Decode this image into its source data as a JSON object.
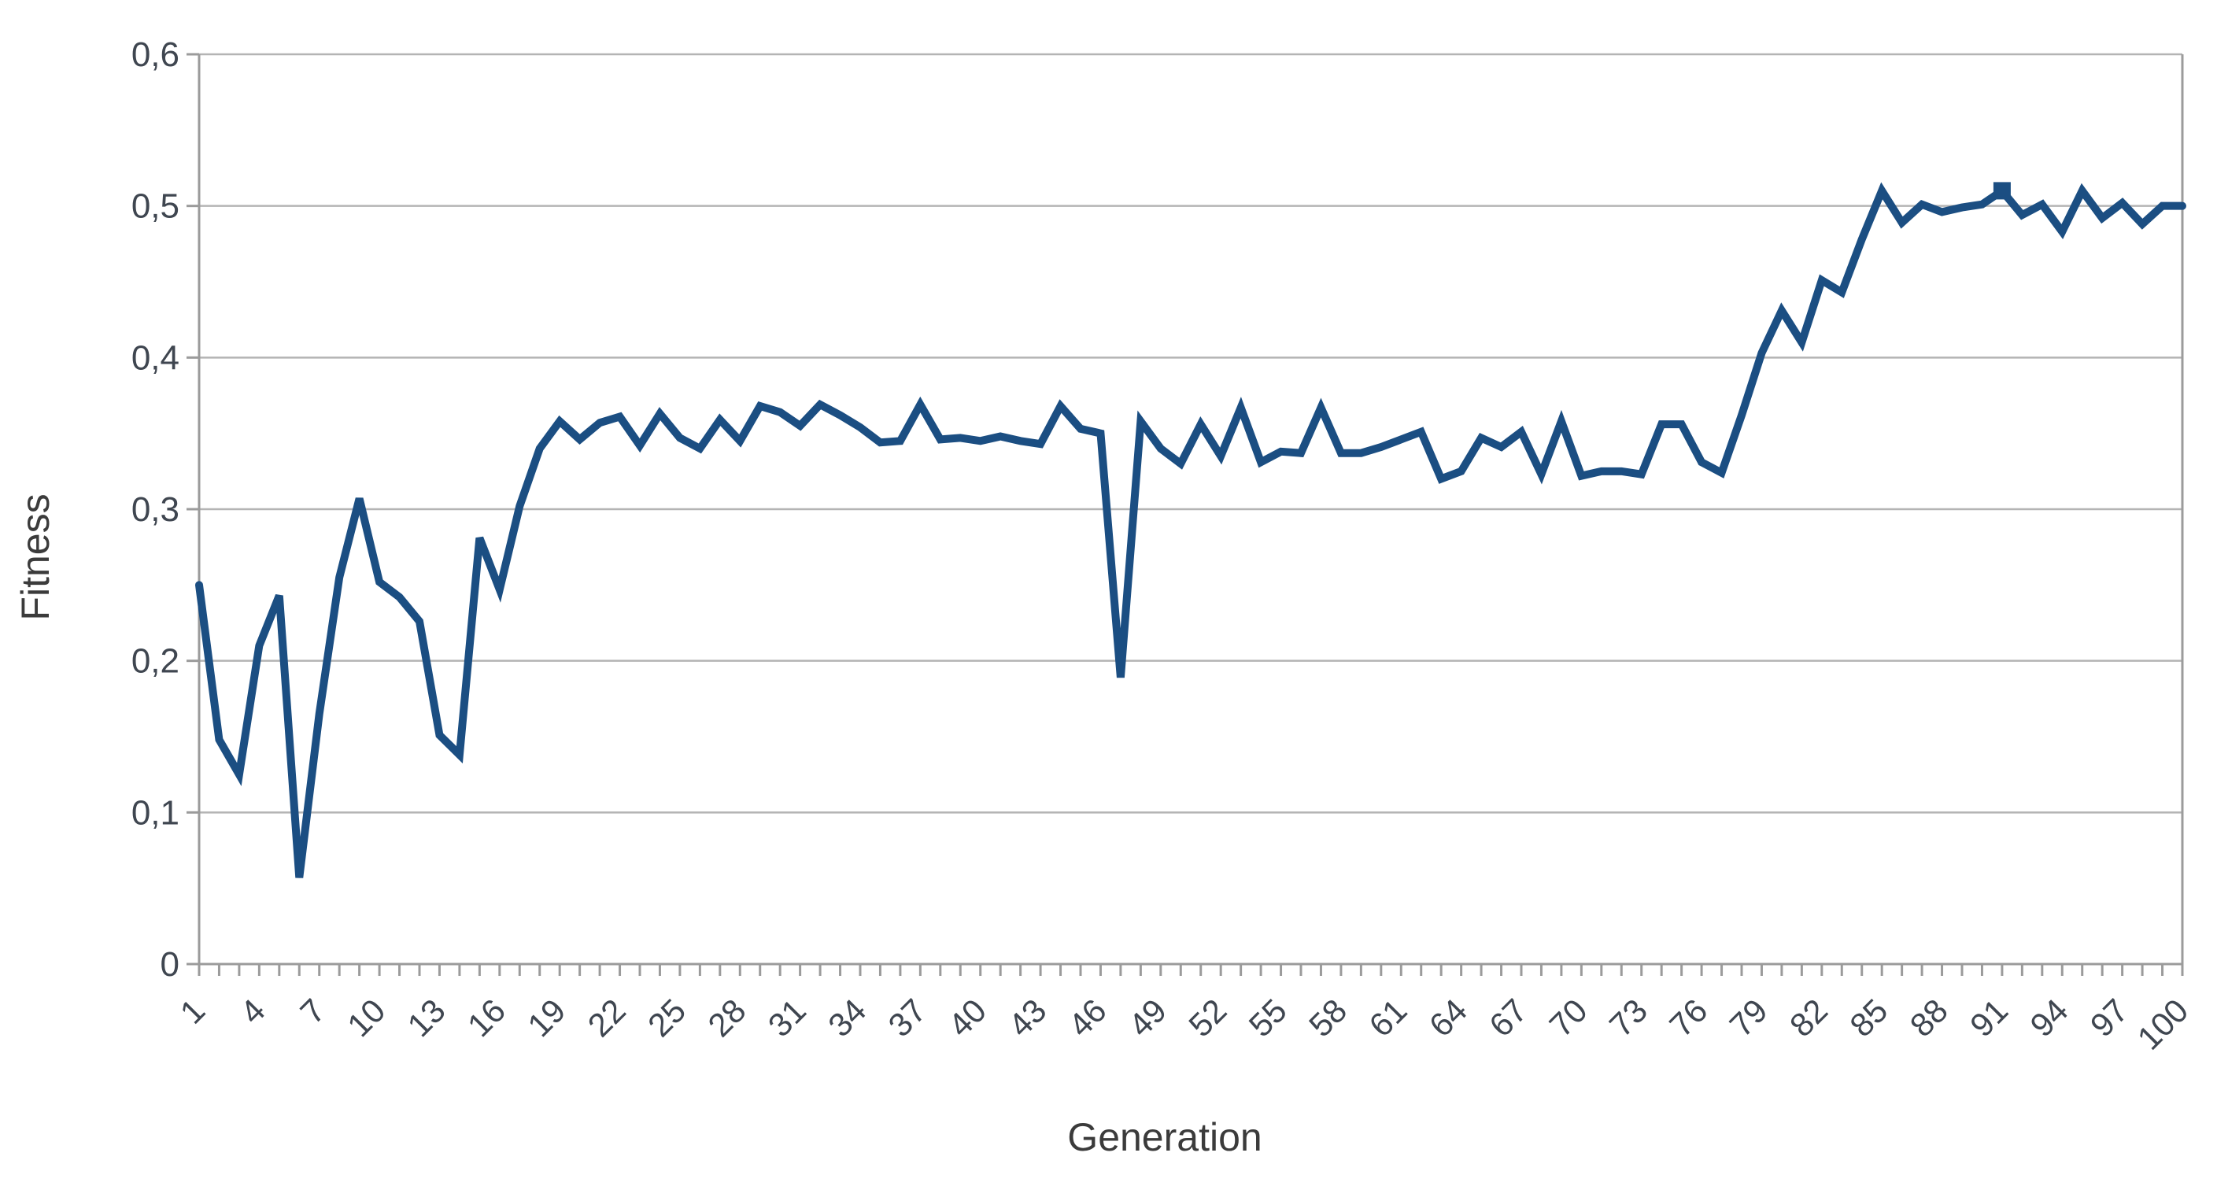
{
  "chart_data": {
    "type": "line",
    "title": "",
    "xlabel": "Generation",
    "ylabel": "Fitness",
    "x": [
      1,
      2,
      3,
      4,
      5,
      6,
      7,
      8,
      9,
      10,
      11,
      12,
      13,
      14,
      15,
      16,
      17,
      18,
      19,
      20,
      21,
      22,
      23,
      24,
      25,
      26,
      27,
      28,
      29,
      30,
      31,
      32,
      33,
      34,
      35,
      36,
      37,
      38,
      39,
      40,
      41,
      42,
      43,
      44,
      45,
      46,
      47,
      48,
      49,
      50,
      51,
      52,
      53,
      54,
      55,
      56,
      57,
      58,
      59,
      60,
      61,
      62,
      63,
      64,
      65,
      66,
      67,
      68,
      69,
      70,
      71,
      72,
      73,
      74,
      75,
      76,
      77,
      78,
      79,
      80,
      81,
      82,
      83,
      84,
      85,
      86,
      87,
      88,
      89,
      90,
      91,
      92,
      93,
      94,
      95,
      96,
      97,
      98,
      99,
      100
    ],
    "series": [
      {
        "name": "Fitness",
        "values": [
          0.25,
          0.148,
          0.125,
          0.21,
          0.243,
          0.057,
          0.165,
          0.255,
          0.307,
          0.252,
          0.242,
          0.226,
          0.151,
          0.138,
          0.281,
          0.247,
          0.302,
          0.34,
          0.358,
          0.346,
          0.357,
          0.361,
          0.342,
          0.363,
          0.347,
          0.34,
          0.359,
          0.345,
          0.368,
          0.364,
          0.355,
          0.369,
          0.362,
          0.354,
          0.344,
          0.345,
          0.369,
          0.346,
          0.347,
          0.345,
          0.348,
          0.345,
          0.343,
          0.368,
          0.353,
          0.35,
          0.189,
          0.358,
          0.34,
          0.33,
          0.356,
          0.335,
          0.367,
          0.331,
          0.338,
          0.337,
          0.367,
          0.337,
          0.337,
          0.341,
          0.346,
          0.351,
          0.32,
          0.325,
          0.347,
          0.341,
          0.351,
          0.323,
          0.358,
          0.322,
          0.325,
          0.325,
          0.323,
          0.356,
          0.356,
          0.331,
          0.324,
          0.362,
          0.403,
          0.431,
          0.41,
          0.451,
          0.443,
          0.478,
          0.51,
          0.489,
          0.501,
          0.496,
          0.499,
          0.501,
          0.51,
          0.494,
          0.501,
          0.483,
          0.51,
          0.492,
          0.502,
          0.488,
          0.5,
          0.5
        ]
      }
    ],
    "marker": {
      "x": 91,
      "value": 0.51,
      "shape": "square"
    },
    "ylim": [
      0,
      0.6
    ],
    "ytick_step": 0.1,
    "ytick_labels": [
      "0",
      "0,1",
      "0,2",
      "0,3",
      "0,4",
      "0,5",
      "0,6"
    ],
    "ytick_values": [
      0,
      0.1,
      0.2,
      0.3,
      0.4,
      0.5,
      0.6
    ],
    "xtick_labels": [
      "1",
      "4",
      "7",
      "10",
      "13",
      "16",
      "19",
      "22",
      "25",
      "28",
      "31",
      "34",
      "37",
      "40",
      "43",
      "46",
      "49",
      "52",
      "55",
      "58",
      "61",
      "64",
      "67",
      "70",
      "73",
      "76",
      "79",
      "82",
      "85",
      "88",
      "91",
      "94",
      "97",
      "100"
    ],
    "xtick_label_step": 3,
    "grid": "horizontal",
    "legend": "none",
    "decimal_separator": ","
  },
  "colors": {
    "series_line": "#1b4e82",
    "marker_fill": "#1b4e82",
    "gridline": "#b4b4b4",
    "axis_line": "#9b9b9b",
    "tick_text": "#3f4650",
    "axis_title_text": "#3b3b3b",
    "background": "#ffffff"
  }
}
